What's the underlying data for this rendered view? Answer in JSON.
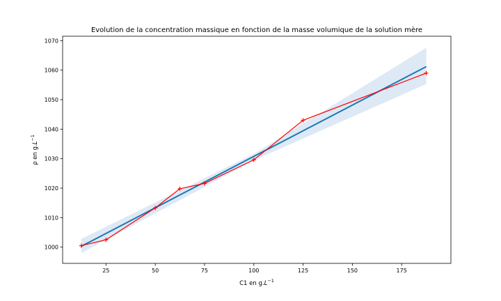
{
  "chart_data": {
    "type": "line",
    "title": "Evolution de la concentration massique en fonction de la masse volumique de la solution mère",
    "xlabel": "C1 en g.L^-1",
    "ylabel": "ρ en g.L^-1",
    "xlim": [
      3,
      200
    ],
    "ylim": [
      994.5,
      1071.5
    ],
    "xticks": [
      25,
      50,
      75,
      100,
      125,
      150,
      175
    ],
    "yticks": [
      1000,
      1010,
      1020,
      1030,
      1040,
      1050,
      1060,
      1070
    ],
    "grid": false,
    "series": [
      {
        "kind": "data",
        "marker": "+",
        "color": "#ff0000",
        "x": [
          12.5,
          25,
          50,
          62.5,
          75,
          100,
          125,
          187.5
        ],
        "y": [
          1000.5,
          1002.5,
          1013.3,
          1019.8,
          1021.6,
          1029.6,
          1043.0,
          1059.0
        ]
      },
      {
        "kind": "regression",
        "color": "#1f77b4",
        "x": [
          12.5,
          187.5
        ],
        "y": [
          1000.3,
          1061.2
        ],
        "ci_color": "#c6dbef",
        "ci_x": [
          12.5,
          100,
          187.5
        ],
        "ci_lower": [
          998.0,
          1029.4,
          1055.3
        ],
        "ci_upper": [
          1002.8,
          1031.6,
          1067.6
        ]
      }
    ]
  }
}
